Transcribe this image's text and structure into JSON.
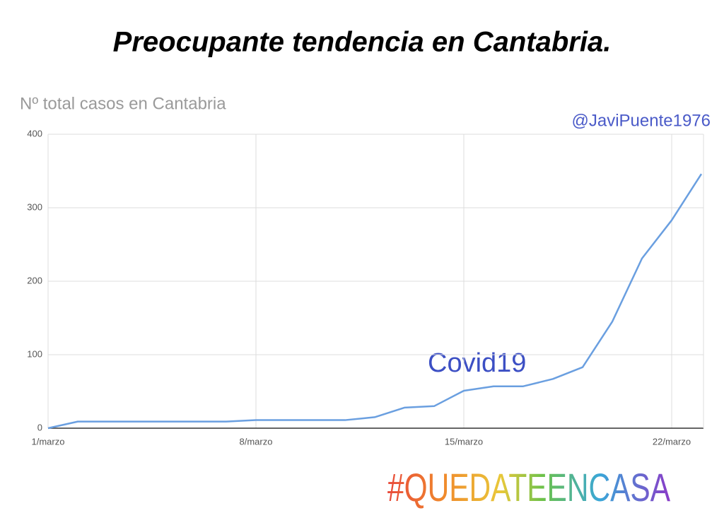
{
  "header": {
    "title": "Preocupante tendencia en Cantabria."
  },
  "chart_data": {
    "type": "line",
    "title": "Nº total casos en Cantabria",
    "annotations": [
      "@JaviPuente1976",
      "Covid19"
    ],
    "categories": [
      "1/marzo",
      null,
      null,
      null,
      null,
      null,
      null,
      "8/marzo",
      null,
      null,
      null,
      null,
      null,
      null,
      "15/marzo",
      null,
      null,
      null,
      null,
      null,
      null,
      "22/marzo",
      null
    ],
    "series": [
      {
        "name": "Covid19",
        "color": "#6a9fe0",
        "values": [
          0,
          9,
          9,
          9,
          9,
          9,
          9,
          11,
          11,
          11,
          11,
          15,
          28,
          30,
          51,
          57,
          57,
          67,
          83,
          145,
          231,
          283,
          346
        ]
      }
    ],
    "ylim": [
      0,
      400
    ],
    "yticks": [
      0,
      100,
      200,
      300,
      400
    ],
    "grid": true
  },
  "footer": {
    "hashtag": "#QUEDATEENCASA"
  }
}
